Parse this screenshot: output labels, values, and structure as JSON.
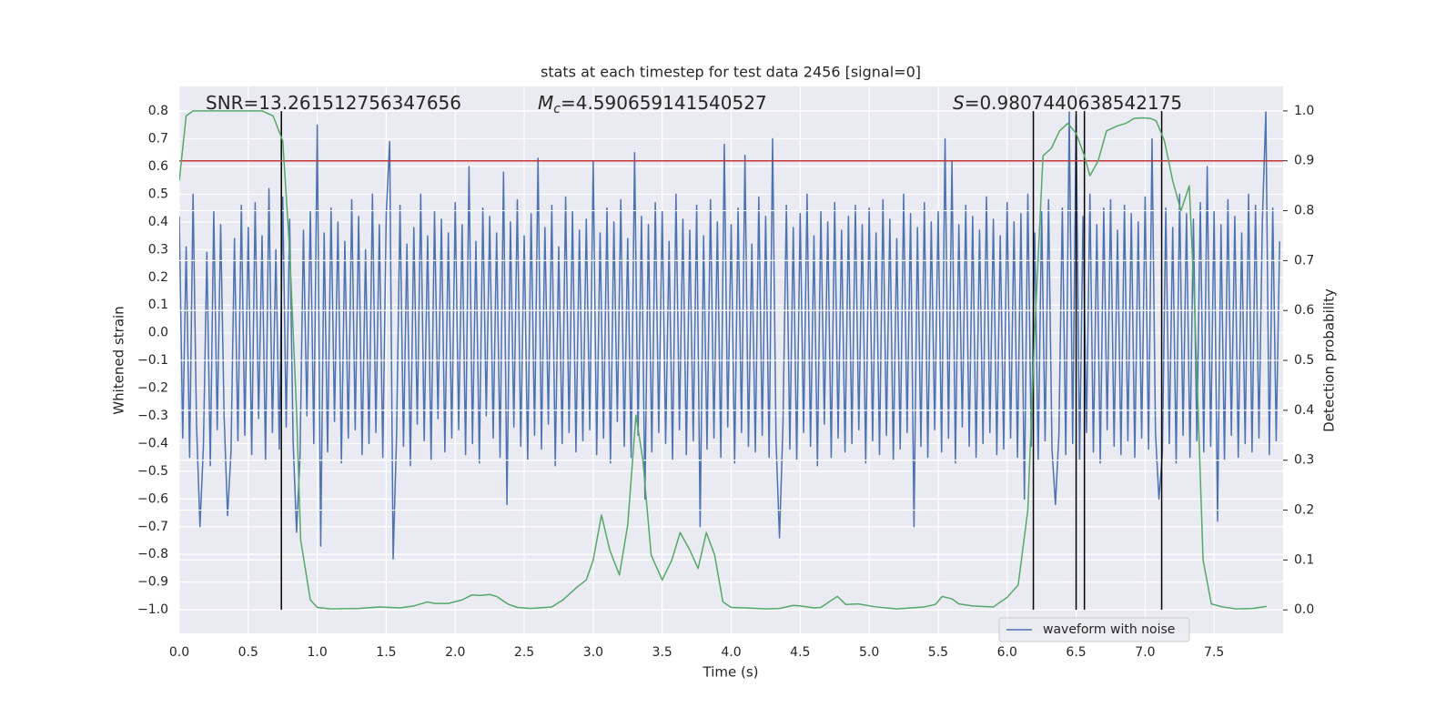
{
  "chart_data": {
    "type": "line",
    "title": "stats at each timestep for test data 2456 [signal=0]",
    "xlabel": "Time (s)",
    "ylabel": "Whitened strain",
    "y2label": "Detection probability",
    "xlim": [
      0,
      8.0
    ],
    "ylim": [
      -1.085,
      0.889
    ],
    "y2lim": [
      -0.047,
      1.049
    ],
    "grid": true,
    "background": "#eaeaf2",
    "xticks": [
      {
        "value": 0,
        "label": "0.0"
      },
      0.5,
      {
        "value": 1,
        "label": "1.0"
      },
      1.5,
      {
        "value": 2,
        "label": "2.0"
      },
      2.5,
      {
        "value": 3,
        "label": "3.0"
      },
      3.5,
      {
        "value": 4,
        "label": "4.0"
      },
      4.5,
      {
        "value": 5,
        "label": "5.0"
      },
      5.5,
      {
        "value": 6,
        "label": "6.0"
      },
      6.5,
      {
        "value": 7,
        "label": "7.0"
      },
      7.5
    ],
    "yticks": [
      {
        "value": -1.0,
        "label": "−1.0"
      },
      {
        "value": -0.9,
        "label": "−0.9"
      },
      {
        "value": -0.8,
        "label": "−0.8"
      },
      {
        "value": -0.7,
        "label": "−0.7"
      },
      {
        "value": -0.6,
        "label": "−0.6"
      },
      {
        "value": -0.5,
        "label": "−0.5"
      },
      {
        "value": -0.4,
        "label": "−0.4"
      },
      {
        "value": -0.3,
        "label": "−0.3"
      },
      {
        "value": -0.2,
        "label": "−0.2"
      },
      {
        "value": -0.1,
        "label": "−0.1"
      },
      {
        "value": 0,
        "label": "0.0"
      },
      0.1,
      0.2,
      0.3,
      0.4,
      0.5,
      0.6,
      0.7,
      0.8
    ],
    "y2ticks": [
      {
        "value": 0,
        "label": "0.0"
      },
      0.1,
      0.2,
      0.3,
      0.4,
      0.5,
      0.6,
      0.7,
      0.8,
      0.9,
      {
        "value": 1,
        "label": "1.0"
      }
    ],
    "annotations": [
      {
        "text": "SNR=13.261512756347656"
      },
      {
        "symbol": "M",
        "subscript": "c",
        "text": "=4.590659141540527"
      },
      {
        "symbol": "S",
        "text": "=0.9807440638542175"
      }
    ],
    "vlines": {
      "x": [
        0.74,
        6.19,
        6.5,
        6.56,
        7.12
      ],
      "ymin": -1.0,
      "ymax": 0.8,
      "color": "#000000"
    },
    "hline": {
      "y": 0.9,
      "axis": "y2",
      "color": "#c83737"
    },
    "series": [
      {
        "name": "waveform with noise",
        "color": "#4c72b0",
        "x": [
          0,
          0.025,
          0.05,
          0.075,
          0.1,
          0.125,
          0.15,
          0.175,
          0.2,
          0.225,
          0.25,
          0.275,
          0.3,
          0.325,
          0.35,
          0.375,
          0.4,
          0.425,
          0.45,
          0.475,
          0.5,
          0.525,
          0.55,
          0.575,
          0.6,
          0.625,
          0.65,
          0.675,
          0.7,
          0.725,
          0.75,
          0.775,
          0.8,
          0.825,
          0.85,
          0.875,
          0.9,
          0.925,
          0.95,
          0.975,
          1.0,
          1.025,
          1.05,
          1.075,
          1.1,
          1.125,
          1.15,
          1.175,
          1.2,
          1.225,
          1.25,
          1.275,
          1.3,
          1.325,
          1.35,
          1.375,
          1.4,
          1.425,
          1.45,
          1.475,
          1.5,
          1.525,
          1.55,
          1.575,
          1.6,
          1.625,
          1.65,
          1.675,
          1.7,
          1.725,
          1.75,
          1.775,
          1.8,
          1.825,
          1.85,
          1.875,
          1.9,
          1.925,
          1.95,
          1.975,
          2.0,
          2.025,
          2.05,
          2.075,
          2.1,
          2.125,
          2.15,
          2.175,
          2.2,
          2.225,
          2.25,
          2.275,
          2.3,
          2.325,
          2.35,
          2.375,
          2.4,
          2.425,
          2.45,
          2.475,
          2.5,
          2.525,
          2.55,
          2.575,
          2.6,
          2.625,
          2.65,
          2.675,
          2.7,
          2.725,
          2.75,
          2.775,
          2.8,
          2.825,
          2.85,
          2.875,
          2.9,
          2.925,
          2.95,
          2.975,
          3.0,
          3.025,
          3.05,
          3.075,
          3.1,
          3.125,
          3.15,
          3.175,
          3.2,
          3.225,
          3.25,
          3.275,
          3.3,
          3.325,
          3.35,
          3.375,
          3.4,
          3.425,
          3.45,
          3.475,
          3.5,
          3.525,
          3.55,
          3.575,
          3.6,
          3.625,
          3.65,
          3.675,
          3.7,
          3.725,
          3.75,
          3.775,
          3.8,
          3.825,
          3.85,
          3.875,
          3.9,
          3.925,
          3.95,
          3.975,
          4.0,
          4.025,
          4.05,
          4.075,
          4.1,
          4.125,
          4.15,
          4.175,
          4.2,
          4.225,
          4.25,
          4.275,
          4.3,
          4.325,
          4.35,
          4.375,
          4.4,
          4.425,
          4.45,
          4.475,
          4.5,
          4.525,
          4.55,
          4.575,
          4.6,
          4.625,
          4.65,
          4.675,
          4.7,
          4.725,
          4.75,
          4.775,
          4.8,
          4.825,
          4.85,
          4.875,
          4.9,
          4.925,
          4.95,
          4.975,
          5.0,
          5.025,
          5.05,
          5.075,
          5.1,
          5.125,
          5.15,
          5.175,
          5.2,
          5.225,
          5.25,
          5.275,
          5.3,
          5.325,
          5.35,
          5.375,
          5.4,
          5.425,
          5.45,
          5.475,
          5.5,
          5.525,
          5.55,
          5.575,
          5.6,
          5.625,
          5.65,
          5.675,
          5.7,
          5.725,
          5.75,
          5.775,
          5.8,
          5.825,
          5.85,
          5.875,
          5.9,
          5.925,
          5.95,
          5.975,
          6.0,
          6.025,
          6.05,
          6.075,
          6.1,
          6.125,
          6.15,
          6.175,
          6.2,
          6.225,
          6.25,
          6.275,
          6.3,
          6.325,
          6.35,
          6.375,
          6.4,
          6.425,
          6.45,
          6.475,
          6.5,
          6.525,
          6.55,
          6.575,
          6.6,
          6.625,
          6.65,
          6.675,
          6.7,
          6.725,
          6.75,
          6.775,
          6.8,
          6.825,
          6.85,
          6.875,
          6.9,
          6.925,
          6.95,
          6.975,
          7.0,
          7.025,
          7.05,
          7.075,
          7.1,
          7.125,
          7.15,
          7.175,
          7.2,
          7.225,
          7.25,
          7.275,
          7.3,
          7.325,
          7.35,
          7.375,
          7.4,
          7.425,
          7.45,
          7.475,
          7.5,
          7.525,
          7.55,
          7.575,
          7.6,
          7.625,
          7.65,
          7.675,
          7.7,
          7.725,
          7.75,
          7.775,
          7.8,
          7.825,
          7.85,
          7.875,
          7.9,
          7.925,
          7.95,
          7.975
        ],
        "values": [
          0.42,
          -0.38,
          0.31,
          -0.45,
          0.5,
          -0.33,
          -0.7,
          -0.41,
          0.29,
          -0.48,
          0.44,
          -0.35,
          0.39,
          -0.3,
          -0.66,
          -0.43,
          0.34,
          -0.39,
          0.46,
          -0.37,
          0.38,
          -0.44,
          0.47,
          -0.31,
          0.35,
          -0.46,
          0.52,
          -0.36,
          0.3,
          -0.42,
          0.49,
          -0.34,
          0.41,
          -0.39,
          -0.72,
          -0.45,
          0.37,
          -0.3,
          0.44,
          -0.4,
          0.75,
          -0.77,
          0.36,
          -0.43,
          0.45,
          -0.32,
          0.4,
          -0.47,
          0.33,
          -0.38,
          0.48,
          -0.35,
          0.42,
          -0.44,
          0.3,
          -0.4,
          0.5,
          -0.36,
          0.39,
          -0.45,
          0.43,
          0.69,
          -0.82,
          -0.37,
          0.46,
          -0.41,
          0.32,
          -0.48,
          0.38,
          -0.33,
          0.5,
          -0.39,
          0.35,
          -0.46,
          0.44,
          -0.31,
          0.41,
          -0.43,
          0.36,
          -0.38,
          0.47,
          -0.35,
          0.39,
          -0.44,
          0.6,
          -0.4,
          0.33,
          -0.47,
          0.45,
          -0.3,
          0.42,
          -0.38,
          0.36,
          -0.45,
          0.58,
          -0.62,
          0.4,
          -0.34,
          0.48,
          -0.41,
          0.35,
          -0.46,
          0.43,
          -0.37,
          0.63,
          -0.42,
          0.38,
          -0.33,
          0.46,
          -0.48,
          0.31,
          -0.4,
          0.49,
          -0.36,
          0.44,
          -0.43,
          0.37,
          -0.39,
          0.41,
          -0.35,
          0.62,
          -0.44,
          0.36,
          -0.38,
          0.45,
          -0.47,
          0.4,
          -0.32,
          0.48,
          -0.41,
          0.34,
          -0.45,
          0.65,
          -0.37,
          0.42,
          -0.6,
          0.39,
          -0.43,
          0.47,
          -0.36,
          0.44,
          -0.4,
          0.33,
          -0.46,
          0.5,
          -0.35,
          0.41,
          -0.44,
          0.37,
          -0.39,
          0.46,
          -0.7,
          0.35,
          -0.42,
          0.48,
          -0.38,
          0.4,
          -0.45,
          0.68,
          -0.34,
          0.39,
          -0.47,
          0.45,
          -0.36,
          0.64,
          -0.41,
          0.32,
          -0.43,
          0.49,
          -0.37,
          0.42,
          -0.45,
          0.7,
          -0.39,
          -0.74,
          -0.34,
          0.46,
          -0.42,
          0.38,
          -0.46,
          0.43,
          -0.36,
          0.5,
          -0.41,
          0.35,
          -0.48,
          0.44,
          -0.33,
          0.4,
          -0.45,
          0.47,
          -0.38,
          0.37,
          -0.43,
          0.42,
          -0.4,
          0.46,
          -0.35,
          0.39,
          -0.47,
          0.45,
          -0.39,
          0.36,
          -0.44,
          0.48,
          -0.37,
          0.41,
          -0.46,
          0.34,
          -0.42,
          0.5,
          -0.36,
          0.43,
          -0.7,
          0.38,
          -0.41,
          0.47,
          -0.45,
          0.4,
          -0.35,
          0.44,
          -0.43,
          0.7,
          -0.38,
          0.62,
          -0.47,
          0.39,
          -0.34,
          0.46,
          -0.41,
          0.42,
          -0.45,
          0.37,
          -0.4,
          0.49,
          -0.36,
          0.41,
          -0.44,
          0.35,
          -0.42,
          0.47,
          -0.38,
          0.4,
          -0.45,
          0.43,
          -0.6,
          0.5,
          -0.41,
          0.36,
          -0.46,
          0.44,
          -0.39,
          0.48,
          -0.42,
          -0.62,
          -0.37,
          0.45,
          -0.44,
          0.8,
          -0.4,
          0.78,
          -0.46,
          0.42,
          -0.36,
          0.5,
          -0.43,
          0.39,
          -0.47,
          0.45,
          -0.35,
          0.48,
          -0.41,
          0.37,
          -0.44,
          0.46,
          -0.39,
          0.43,
          -0.45,
          0.4,
          -0.38,
          0.49,
          -0.42,
          0.7,
          -0.36,
          -0.6,
          -0.44,
          0.45,
          -0.4,
          0.38,
          -0.47,
          0.5,
          -0.37,
          0.43,
          -0.45,
          0.41,
          -0.39,
          0.47,
          -0.43,
          0.6,
          -0.41,
          0.44,
          -0.68,
          0.39,
          -0.46,
          0.48,
          -0.37,
          0.42,
          -0.45,
          0.36,
          -0.4,
          0.5,
          -0.43,
          0.46,
          -0.38,
          0.41,
          0.8,
          -0.44,
          0.45,
          -0.39,
          0.33
        ]
      },
      {
        "color": "#55a868",
        "axis": "y2",
        "x": [
          0,
          0.05,
          0.1,
          0.2,
          0.3,
          0.4,
          0.5,
          0.6,
          0.68,
          0.75,
          0.8,
          0.85,
          0.88,
          0.95,
          1.0,
          1.1,
          1.3,
          1.45,
          1.6,
          1.7,
          1.8,
          1.85,
          1.95,
          2.05,
          2.12,
          2.18,
          2.25,
          2.3,
          2.38,
          2.45,
          2.55,
          2.7,
          2.78,
          2.88,
          2.95,
          3.0,
          3.06,
          3.12,
          3.19,
          3.25,
          3.31,
          3.36,
          3.42,
          3.5,
          3.57,
          3.63,
          3.7,
          3.76,
          3.82,
          3.88,
          3.94,
          4.0,
          4.1,
          4.25,
          4.35,
          4.45,
          4.5,
          4.6,
          4.65,
          4.72,
          4.77,
          4.83,
          4.92,
          5.05,
          5.2,
          5.4,
          5.48,
          5.53,
          5.6,
          5.65,
          5.75,
          5.9,
          6.0,
          6.08,
          6.15,
          6.2,
          6.26,
          6.32,
          6.38,
          6.44,
          6.5,
          6.56,
          6.6,
          6.66,
          6.72,
          6.8,
          6.86,
          6.92,
          6.98,
          7.04,
          7.08,
          7.14,
          7.2,
          7.26,
          7.32,
          7.36,
          7.42,
          7.48,
          7.56,
          7.66,
          7.78,
          7.88
        ],
        "values": [
          0.86,
          0.99,
          1.0,
          1.0,
          1.0,
          1.0,
          1.0,
          1.0,
          0.99,
          0.94,
          0.72,
          0.4,
          0.14,
          0.02,
          0.005,
          0.002,
          0.003,
          0.006,
          0.004,
          0.008,
          0.016,
          0.013,
          0.013,
          0.02,
          0.03,
          0.029,
          0.031,
          0.027,
          0.012,
          0.005,
          0.003,
          0.006,
          0.02,
          0.045,
          0.06,
          0.1,
          0.19,
          0.12,
          0.07,
          0.17,
          0.39,
          0.3,
          0.11,
          0.06,
          0.1,
          0.155,
          0.12,
          0.083,
          0.155,
          0.11,
          0.016,
          0.005,
          0.004,
          0.002,
          0.003,
          0.009,
          0.008,
          0.004,
          0.005,
          0.018,
          0.027,
          0.011,
          0.012,
          0.006,
          0.002,
          0.006,
          0.011,
          0.027,
          0.022,
          0.012,
          0.008,
          0.006,
          0.025,
          0.05,
          0.2,
          0.56,
          0.91,
          0.925,
          0.96,
          0.975,
          0.955,
          0.91,
          0.87,
          0.9,
          0.96,
          0.97,
          0.975,
          0.985,
          0.986,
          0.985,
          0.98,
          0.94,
          0.86,
          0.8,
          0.85,
          0.6,
          0.1,
          0.012,
          0.006,
          0.002,
          0.003,
          0.007
        ]
      }
    ]
  }
}
